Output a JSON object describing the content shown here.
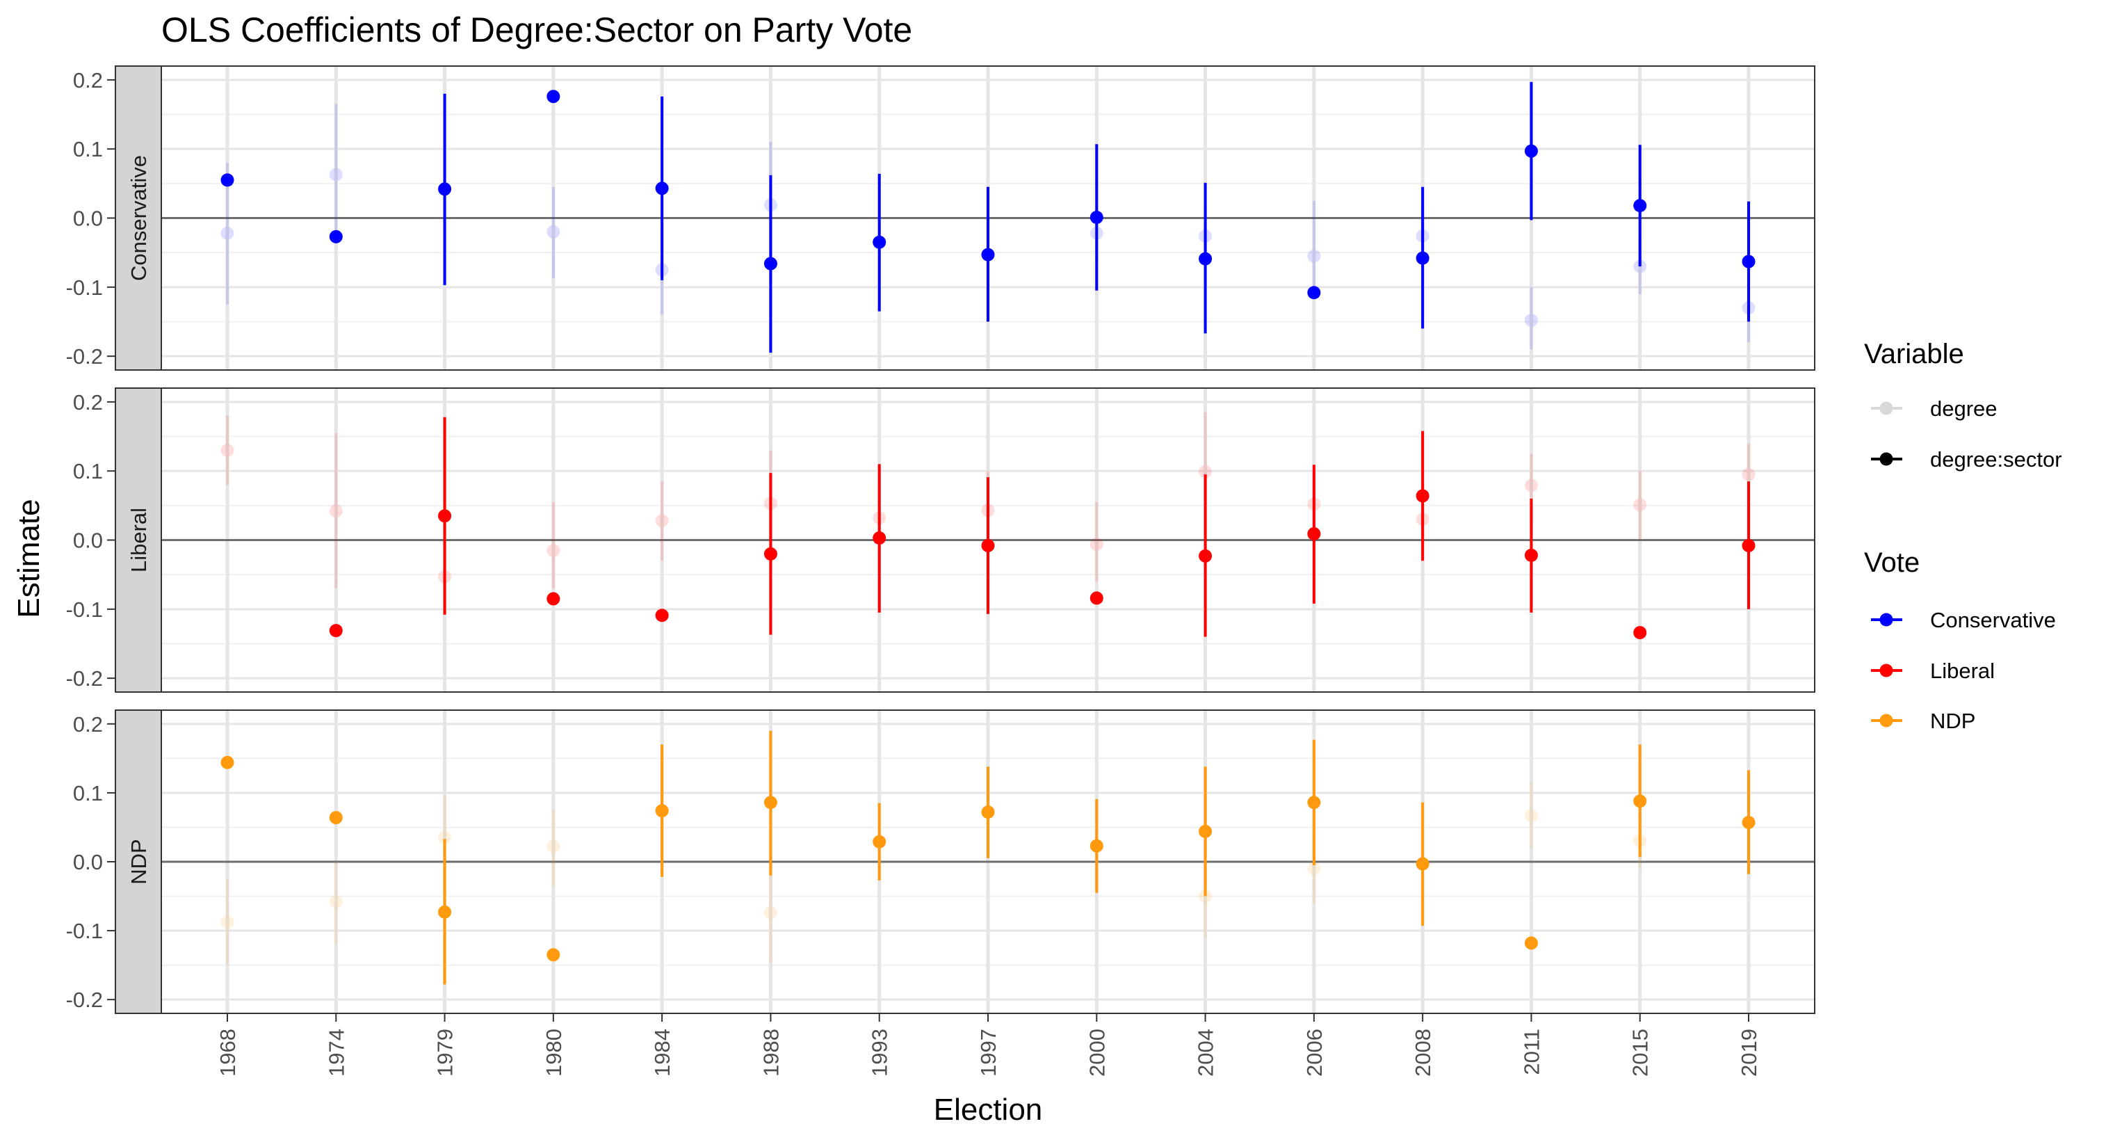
{
  "chart_data": {
    "type": "scatter",
    "subtype": "faceted point-range (coefficient plot)",
    "title": "OLS Coefficients of Degree:Sector on Party Vote",
    "xlabel": "Election",
    "ylabel": "Estimate",
    "ylim": [
      -0.22,
      0.22
    ],
    "y_ticks": [
      "-0.2",
      "-0.1",
      "0.0",
      "0.1",
      "0.2"
    ],
    "y_tick_values": [
      -0.2,
      -0.1,
      0.0,
      0.1,
      0.2
    ],
    "x_ticks": [
      "1968",
      "1974",
      "1979",
      "1980",
      "1984",
      "1988",
      "1993",
      "1997",
      "2000",
      "2004",
      "2006",
      "2008",
      "2011",
      "2015",
      "2019"
    ],
    "grid": true,
    "reference_line": 0,
    "legend_position": "right",
    "legends": [
      {
        "title": "Variable",
        "items": [
          {
            "label": "degree",
            "color": "#000000",
            "faded": true
          },
          {
            "label": "degree:sector",
            "color": "#000000",
            "faded": false
          }
        ]
      },
      {
        "title": "Vote",
        "items": [
          {
            "label": "Conservative",
            "color": "#0000ff"
          },
          {
            "label": "Liberal",
            "color": "#ff0000"
          },
          {
            "label": "NDP",
            "color": "#ff9a0e"
          }
        ]
      }
    ],
    "facets": [
      {
        "label": "Conservative",
        "color": "#0000ff",
        "series": [
          {
            "name": "degree",
            "values": [
              -0.022,
              0.063,
              null,
              -0.02,
              -0.075,
              0.019,
              null,
              null,
              -0.022,
              -0.026,
              -0.055,
              -0.026,
              -0.148,
              -0.07,
              -0.13
            ],
            "ci_low": [
              -0.125,
              -0.03,
              null,
              -0.087,
              -0.14,
              -0.08,
              null,
              null,
              -0.065,
              -0.07,
              -0.11,
              -0.07,
              -0.19,
              -0.11,
              -0.18
            ],
            "ci_high": [
              0.08,
              0.165,
              null,
              0.045,
              -0.01,
              0.11,
              null,
              null,
              0.02,
              0.02,
              0.025,
              0.02,
              -0.1,
              -0.03,
              -0.08
            ]
          },
          {
            "name": "degree:sector",
            "values": [
              0.055,
              -0.027,
              0.042,
              0.176,
              0.043,
              -0.066,
              -0.035,
              -0.053,
              0.001,
              -0.059,
              -0.108,
              -0.058,
              0.097,
              0.018,
              -0.063
            ],
            "ci_low": [
              null,
              null,
              -0.097,
              null,
              -0.09,
              -0.195,
              -0.135,
              -0.15,
              -0.105,
              -0.167,
              null,
              -0.16,
              -0.003,
              -0.07,
              -0.15
            ],
            "ci_high": [
              null,
              null,
              0.18,
              null,
              0.176,
              0.062,
              0.064,
              0.045,
              0.107,
              0.051,
              null,
              0.045,
              0.197,
              0.106,
              0.024
            ]
          }
        ]
      },
      {
        "label": "Liberal",
        "color": "#ff0000",
        "series": [
          {
            "name": "degree",
            "values": [
              0.13,
              0.042,
              -0.053,
              -0.015,
              0.028,
              0.053,
              0.032,
              0.043,
              -0.006,
              0.099,
              0.052,
              0.03,
              0.079,
              0.051,
              0.095
            ],
            "ci_low": [
              0.08,
              -0.07,
              -0.1,
              -0.07,
              -0.03,
              0.0,
              -0.02,
              -0.01,
              -0.06,
              0.05,
              0.0,
              -0.01,
              0.03,
              0.0,
              0.05
            ],
            "ci_high": [
              0.18,
              0.155,
              0.0,
              0.055,
              0.085,
              0.13,
              0.085,
              0.1,
              0.055,
              0.185,
              0.1,
              0.07,
              0.125,
              0.1,
              0.14
            ]
          },
          {
            "name": "degree:sector",
            "values": [
              null,
              -0.131,
              0.035,
              -0.085,
              -0.109,
              -0.02,
              0.003,
              -0.008,
              -0.084,
              -0.023,
              0.009,
              0.064,
              -0.022,
              -0.134,
              -0.008
            ],
            "ci_low": [
              null,
              null,
              -0.108,
              null,
              null,
              -0.137,
              -0.105,
              -0.107,
              null,
              -0.14,
              -0.092,
              -0.03,
              -0.105,
              null,
              -0.1
            ],
            "ci_high": [
              null,
              null,
              0.178,
              null,
              null,
              0.097,
              0.11,
              0.091,
              null,
              0.095,
              0.109,
              0.158,
              0.06,
              null,
              0.085
            ]
          }
        ]
      },
      {
        "label": "NDP",
        "color": "#ff9a0e",
        "series": [
          {
            "name": "degree",
            "values": [
              -0.088,
              -0.058,
              0.035,
              0.022,
              null,
              -0.074,
              null,
              null,
              null,
              -0.05,
              -0.01,
              null,
              0.067,
              0.03,
              null
            ],
            "ci_low": [
              -0.15,
              -0.12,
              -0.03,
              -0.035,
              null,
              -0.145,
              null,
              null,
              null,
              -0.11,
              -0.06,
              null,
              0.02,
              -0.01,
              null
            ],
            "ci_high": [
              -0.025,
              0.0,
              0.095,
              0.075,
              null,
              0.0,
              null,
              null,
              null,
              0.01,
              0.04,
              null,
              0.115,
              0.07,
              null
            ]
          },
          {
            "name": "degree:sector",
            "values": [
              0.144,
              0.064,
              -0.073,
              -0.135,
              0.074,
              0.086,
              0.029,
              0.072,
              0.023,
              0.044,
              0.086,
              -0.003,
              -0.118,
              0.088,
              0.057
            ],
            "ci_low": [
              null,
              null,
              -0.178,
              null,
              -0.022,
              -0.02,
              -0.027,
              0.005,
              -0.045,
              -0.05,
              -0.005,
              -0.093,
              null,
              0.007,
              -0.018
            ],
            "ci_high": [
              null,
              null,
              0.033,
              null,
              0.17,
              0.19,
              0.085,
              0.138,
              0.091,
              0.138,
              0.177,
              0.086,
              null,
              0.17,
              0.133
            ]
          }
        ]
      }
    ]
  }
}
